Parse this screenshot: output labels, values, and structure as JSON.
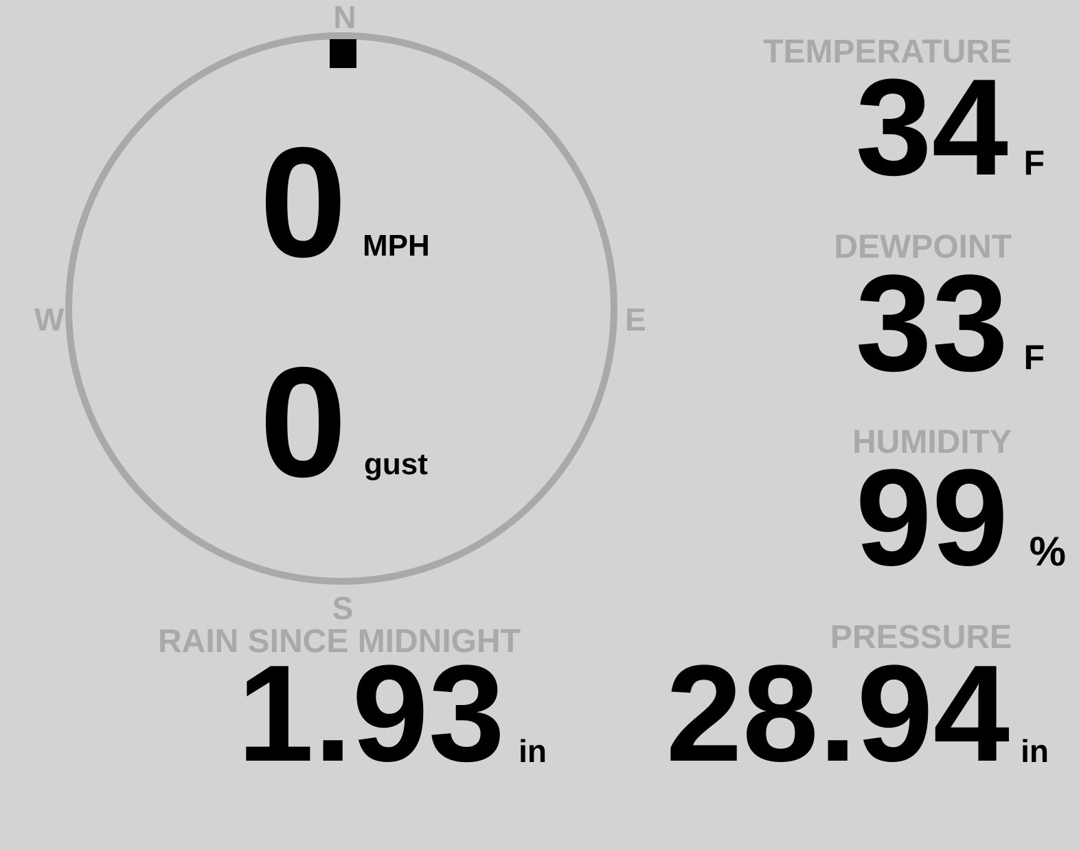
{
  "colors": {
    "background": "#d3d3d3",
    "label": "#a9a9a9",
    "value": "#000000",
    "compass_ring": "#a9a9a9",
    "wind_direction_marker": "#000000"
  },
  "wind": {
    "compass": {
      "n": "N",
      "e": "E",
      "s": "S",
      "w": "W"
    },
    "direction_degrees": 0,
    "speed": "0",
    "speed_unit": "MPH",
    "gust": "0",
    "gust_unit": "gust"
  },
  "temperature": {
    "label": "TEMPERATURE",
    "value": "34",
    "unit": "F"
  },
  "dewpoint": {
    "label": "DEWPOINT",
    "value": "33",
    "unit": "F"
  },
  "humidity": {
    "label": "HUMIDITY",
    "value": "99",
    "unit": "%"
  },
  "rain": {
    "label": "RAIN SINCE MIDNIGHT",
    "value": "1.93",
    "unit": "in"
  },
  "pressure": {
    "label": "PRESSURE",
    "value": "28.94",
    "unit": "in"
  }
}
